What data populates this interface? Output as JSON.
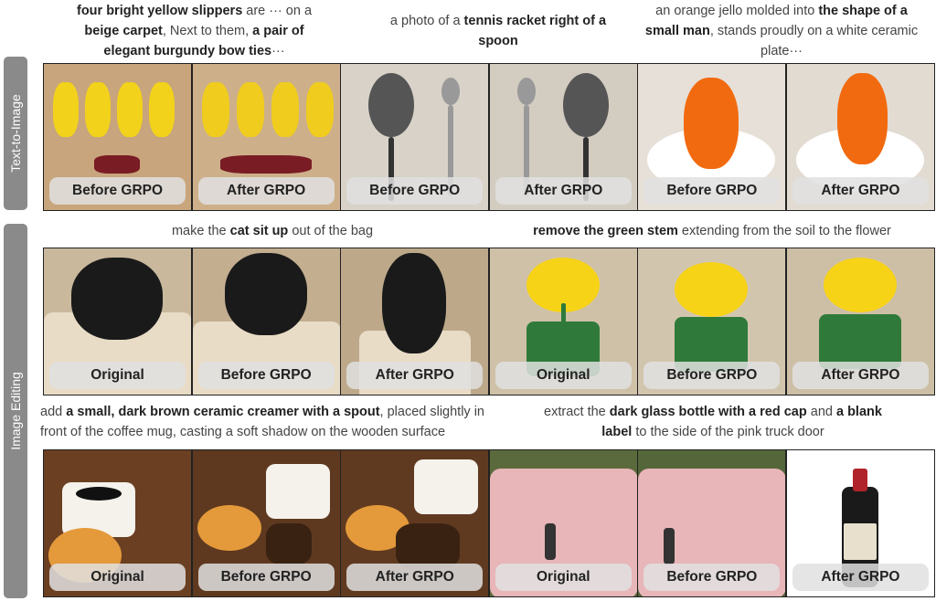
{
  "side_labels": {
    "t2i": "Text-to-Image",
    "edit": "Image Editing"
  },
  "captions": {
    "slippers": [
      {
        "t": "four bright yellow slippers",
        "b": true
      },
      {
        "t": " are ··· on a ",
        "b": false
      },
      {
        "t": "beige carpet",
        "b": true
      },
      {
        "t": ", Next to them, ",
        "b": false
      },
      {
        "t": "a pair of elegant burgundy bow ties",
        "b": true
      },
      {
        "t": "···",
        "b": false
      }
    ],
    "racket": [
      {
        "t": "a photo of a ",
        "b": false
      },
      {
        "t": "tennis racket right of a spoon",
        "b": true
      }
    ],
    "jello": [
      {
        "t": "an orange jello molded into ",
        "b": false
      },
      {
        "t": "the shape of a small man",
        "b": true
      },
      {
        "t": ", stands proudly on a white ceramic plate···",
        "b": false
      }
    ],
    "cat": [
      {
        "t": "make the ",
        "b": false
      },
      {
        "t": "cat sit up",
        "b": true
      },
      {
        "t": " out of the bag",
        "b": false
      }
    ],
    "flower": [
      {
        "t": "remove the green stem",
        "b": true
      },
      {
        "t": " extending from the soil to the flower",
        "b": false
      }
    ],
    "coffee": [
      {
        "t": "add ",
        "b": false
      },
      {
        "t": "a small, dark brown ceramic creamer with a spout",
        "b": true
      },
      {
        "t": ", placed slightly in front of the coffee mug, casting a soft shadow on the wooden surface",
        "b": false
      }
    ],
    "bottle": [
      {
        "t": "extract the ",
        "b": false
      },
      {
        "t": "dark glass bottle with a red cap",
        "b": true
      },
      {
        "t": " and ",
        "b": false
      },
      {
        "t": "a blank label",
        "b": true
      },
      {
        "t": " to the side of the pink truck door",
        "b": false
      }
    ]
  },
  "rows": [
    {
      "labels": [
        "Before GRPO",
        "After GRPO",
        "Before GRPO",
        "After GRPO",
        "Before GRPO",
        "After GRPO"
      ],
      "bg": [
        "#c8a57c",
        "#cdb08a",
        "#d8d2c8",
        "#d3ccc0",
        "#e6e0d8",
        "#e2dbd2"
      ]
    },
    {
      "labels": [
        "Original",
        "Before GRPO",
        "After GRPO",
        "Original",
        "Before GRPO",
        "After GRPO"
      ],
      "bg": [
        "#c9b89c",
        "#c3ae90",
        "#bda98a",
        "#cfc1a8",
        "#d2c5ae",
        "#cdbfa6"
      ]
    },
    {
      "labels": [
        "Original",
        "Before GRPO",
        "After GRPO",
        "Original",
        "Before GRPO",
        "After GRPO"
      ],
      "bg": [
        "#6b3f22",
        "#5e3920",
        "#603a20",
        "#5b6a3c",
        "#55663a",
        "#ffffff"
      ]
    }
  ]
}
